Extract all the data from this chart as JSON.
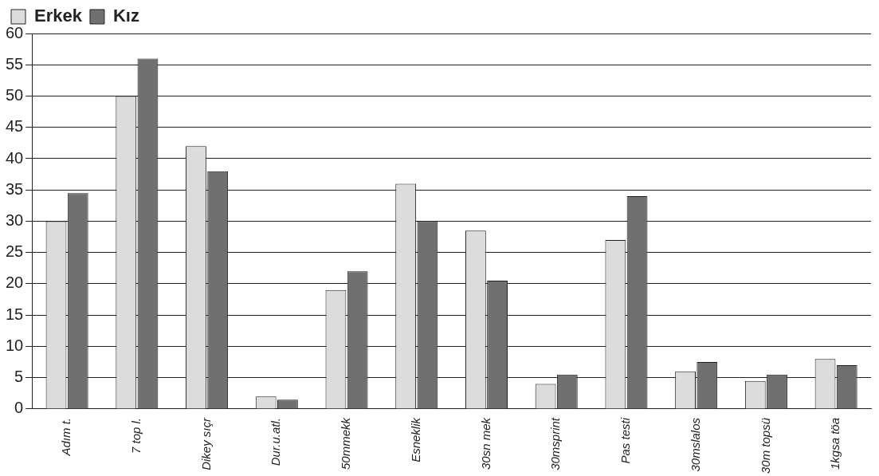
{
  "chart_data": {
    "type": "bar",
    "categories": [
      "Adım t.",
      "7 top l.",
      "Dikey sıçr",
      "Dur.u.atl.",
      "50mmekk",
      "Esneklik",
      "30sn mek",
      "30msprint",
      "Pas testi",
      "30mslalos",
      "30m topsü",
      "1kgsa töa"
    ],
    "series": [
      {
        "name": "Erkek",
        "color": "#dcdcdc",
        "values": [
          30,
          50,
          42,
          2,
          19,
          36,
          28.5,
          4,
          27,
          6,
          4.5,
          8
        ]
      },
      {
        "name": "Kız",
        "color": "#707070",
        "values": [
          34.5,
          56,
          38,
          1.5,
          22,
          30,
          20.5,
          5.5,
          34,
          7.5,
          5.5,
          7
        ]
      }
    ],
    "ylim": [
      0,
      60
    ],
    "yticks": [
      0,
      5,
      10,
      15,
      20,
      25,
      30,
      35,
      40,
      45,
      50,
      55,
      60
    ],
    "grid": "y",
    "legend": "top left"
  }
}
